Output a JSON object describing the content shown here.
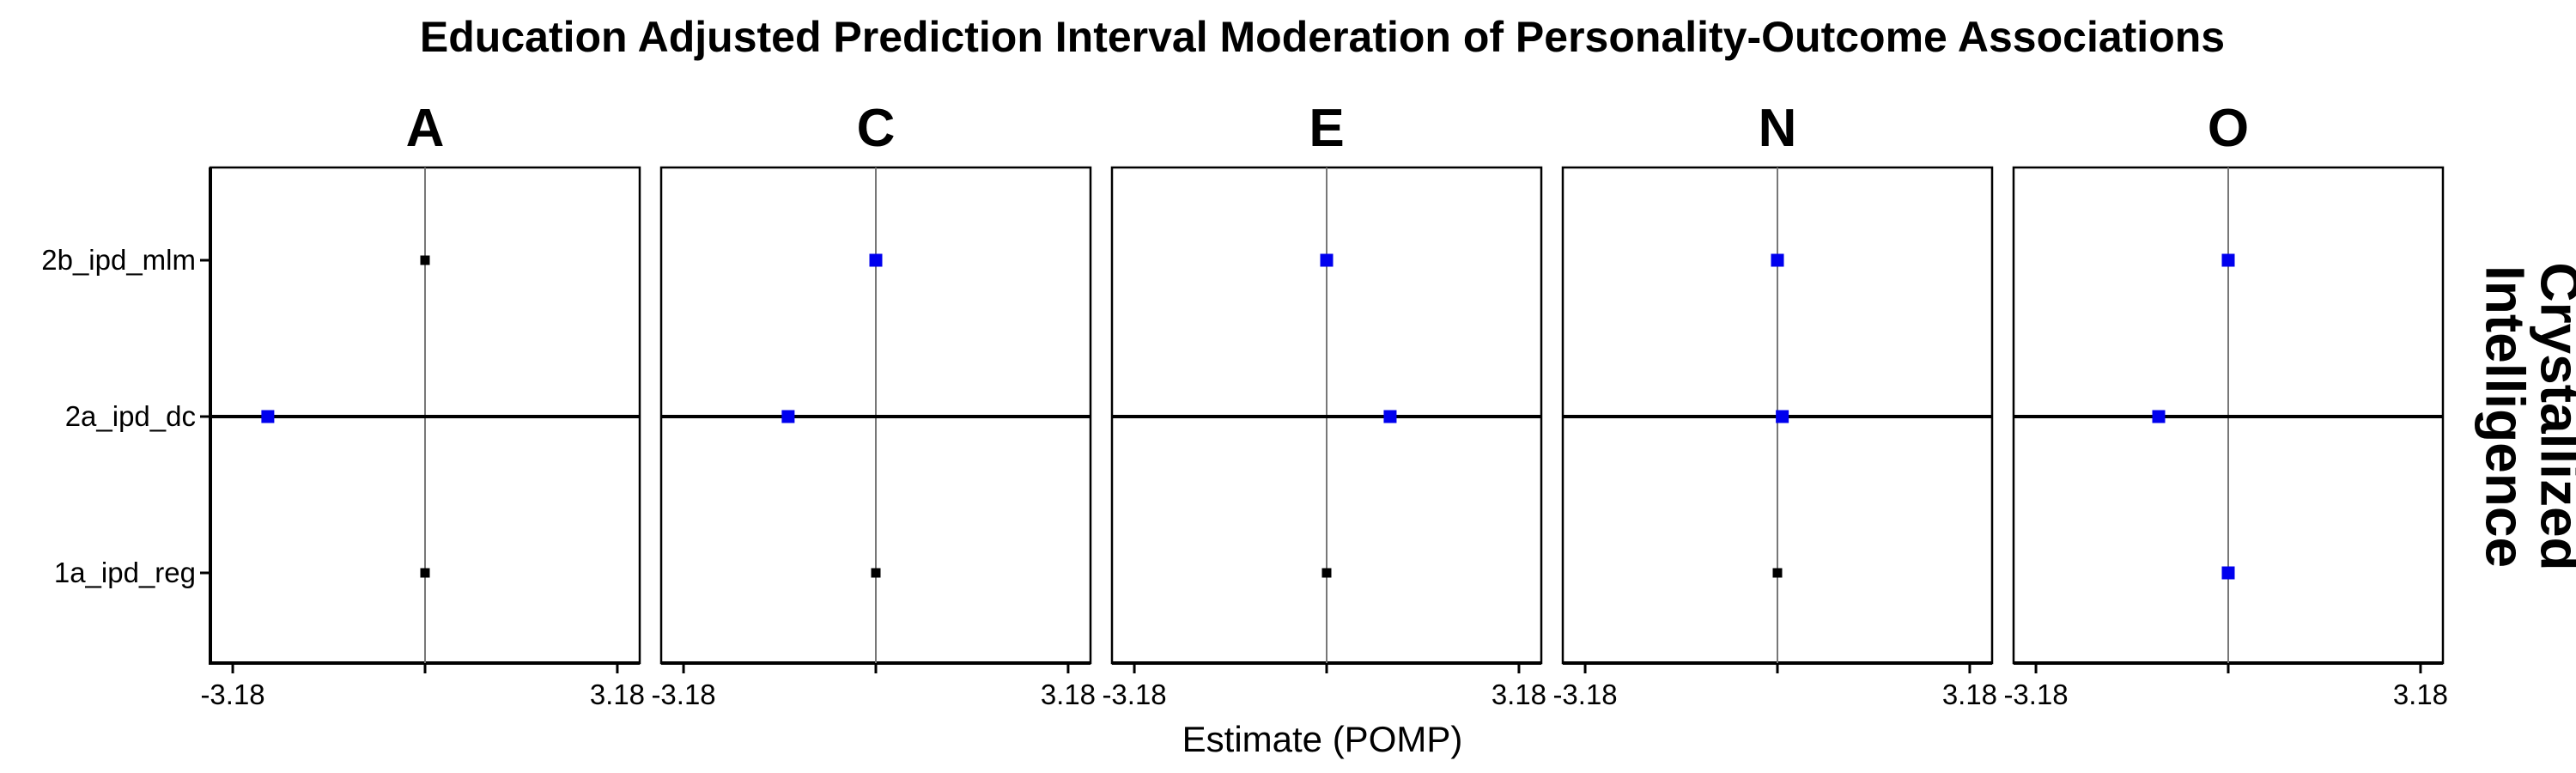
{
  "chart_data": {
    "type": "forest",
    "title": "Education Adjusted Prediction Interval Moderation of Personality-Outcome Associations",
    "xlabel": "Estimate (POMP)",
    "ylabel": "",
    "strip_label": "Crystallized Intelligence",
    "xlim": [
      -3.55,
      3.55
    ],
    "x_ticks": [
      -3.18,
      0,
      3.18
    ],
    "x_tick_labels": [
      "-3.18",
      "",
      "3.18"
    ],
    "reference_line": 0,
    "categories": [
      "2b_ipd_mlm",
      "2a_ipd_dc",
      "1a_ipd_reg"
    ],
    "colors": {
      "significant": "#0000ee",
      "nonsignificant": "#000000",
      "interval": "#000000",
      "reference": "#777777"
    },
    "panels": [
      {
        "name": "A",
        "points": [
          {
            "category": "2b_ipd_mlm",
            "estimate": 0.0,
            "lower": 0.0,
            "upper": 0.0,
            "significant": false
          },
          {
            "category": "2a_ipd_dc",
            "estimate": -2.6,
            "lower": -3.55,
            "upper": 3.55,
            "significant": true
          },
          {
            "category": "1a_ipd_reg",
            "estimate": 0.0,
            "lower": 0.0,
            "upper": 0.0,
            "significant": false
          }
        ]
      },
      {
        "name": "C",
        "points": [
          {
            "category": "2b_ipd_mlm",
            "estimate": 0.0,
            "lower": 0.0,
            "upper": 0.0,
            "significant": true
          },
          {
            "category": "2a_ipd_dc",
            "estimate": -1.45,
            "lower": -3.55,
            "upper": 3.55,
            "significant": true
          },
          {
            "category": "1a_ipd_reg",
            "estimate": 0.0,
            "lower": 0.0,
            "upper": 0.0,
            "significant": false
          }
        ]
      },
      {
        "name": "E",
        "points": [
          {
            "category": "2b_ipd_mlm",
            "estimate": 0.0,
            "lower": 0.0,
            "upper": 0.0,
            "significant": true
          },
          {
            "category": "2a_ipd_dc",
            "estimate": 1.05,
            "lower": -3.55,
            "upper": 3.55,
            "significant": true
          },
          {
            "category": "1a_ipd_reg",
            "estimate": 0.0,
            "lower": 0.0,
            "upper": 0.0,
            "significant": false
          }
        ]
      },
      {
        "name": "N",
        "points": [
          {
            "category": "2b_ipd_mlm",
            "estimate": 0.0,
            "lower": 0.0,
            "upper": 0.0,
            "significant": true
          },
          {
            "category": "2a_ipd_dc",
            "estimate": 0.08,
            "lower": -3.55,
            "upper": 3.55,
            "significant": true
          },
          {
            "category": "1a_ipd_reg",
            "estimate": 0.0,
            "lower": 0.0,
            "upper": 0.0,
            "significant": false
          }
        ]
      },
      {
        "name": "O",
        "points": [
          {
            "category": "2b_ipd_mlm",
            "estimate": 0.0,
            "lower": 0.0,
            "upper": 0.0,
            "significant": true
          },
          {
            "category": "2a_ipd_dc",
            "estimate": -1.15,
            "lower": -3.55,
            "upper": 3.55,
            "significant": true
          },
          {
            "category": "1a_ipd_reg",
            "estimate": 0.0,
            "lower": 0.0,
            "upper": 0.0,
            "significant": true
          }
        ]
      }
    ]
  }
}
